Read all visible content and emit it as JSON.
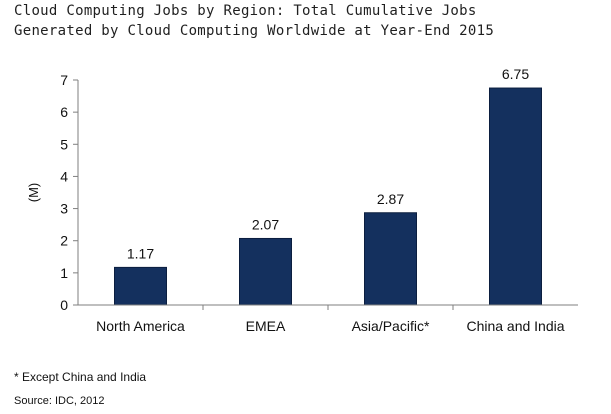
{
  "title_lines": [
    "Cloud Computing Jobs by Region: Total Cumulative Jobs",
    "Generated by Cloud Computing Worldwide at Year-End 2015"
  ],
  "footnote": "* Except China and India",
  "source": "Source: IDC, 2012",
  "chart_data": {
    "type": "bar",
    "title": "Cloud Computing Jobs by Region: Total Cumulative Jobs Generated by Cloud Computing Worldwide at Year-End 2015",
    "categories": [
      "North America",
      "EMEA",
      "Asia/Pacific*",
      "China and India"
    ],
    "values": [
      1.17,
      2.07,
      2.87,
      6.75
    ],
    "value_labels": [
      "1.17",
      "2.07",
      "2.87",
      "6.75"
    ],
    "xlabel": "",
    "ylabel": "(M)",
    "ylim": [
      0,
      7
    ],
    "yticks": [
      0,
      1,
      2,
      3,
      4,
      5,
      6,
      7
    ],
    "grid": false,
    "legend": "none",
    "colors": {
      "bar": "#14305e",
      "axis": "#7f7f7f",
      "text": "#111111"
    }
  }
}
